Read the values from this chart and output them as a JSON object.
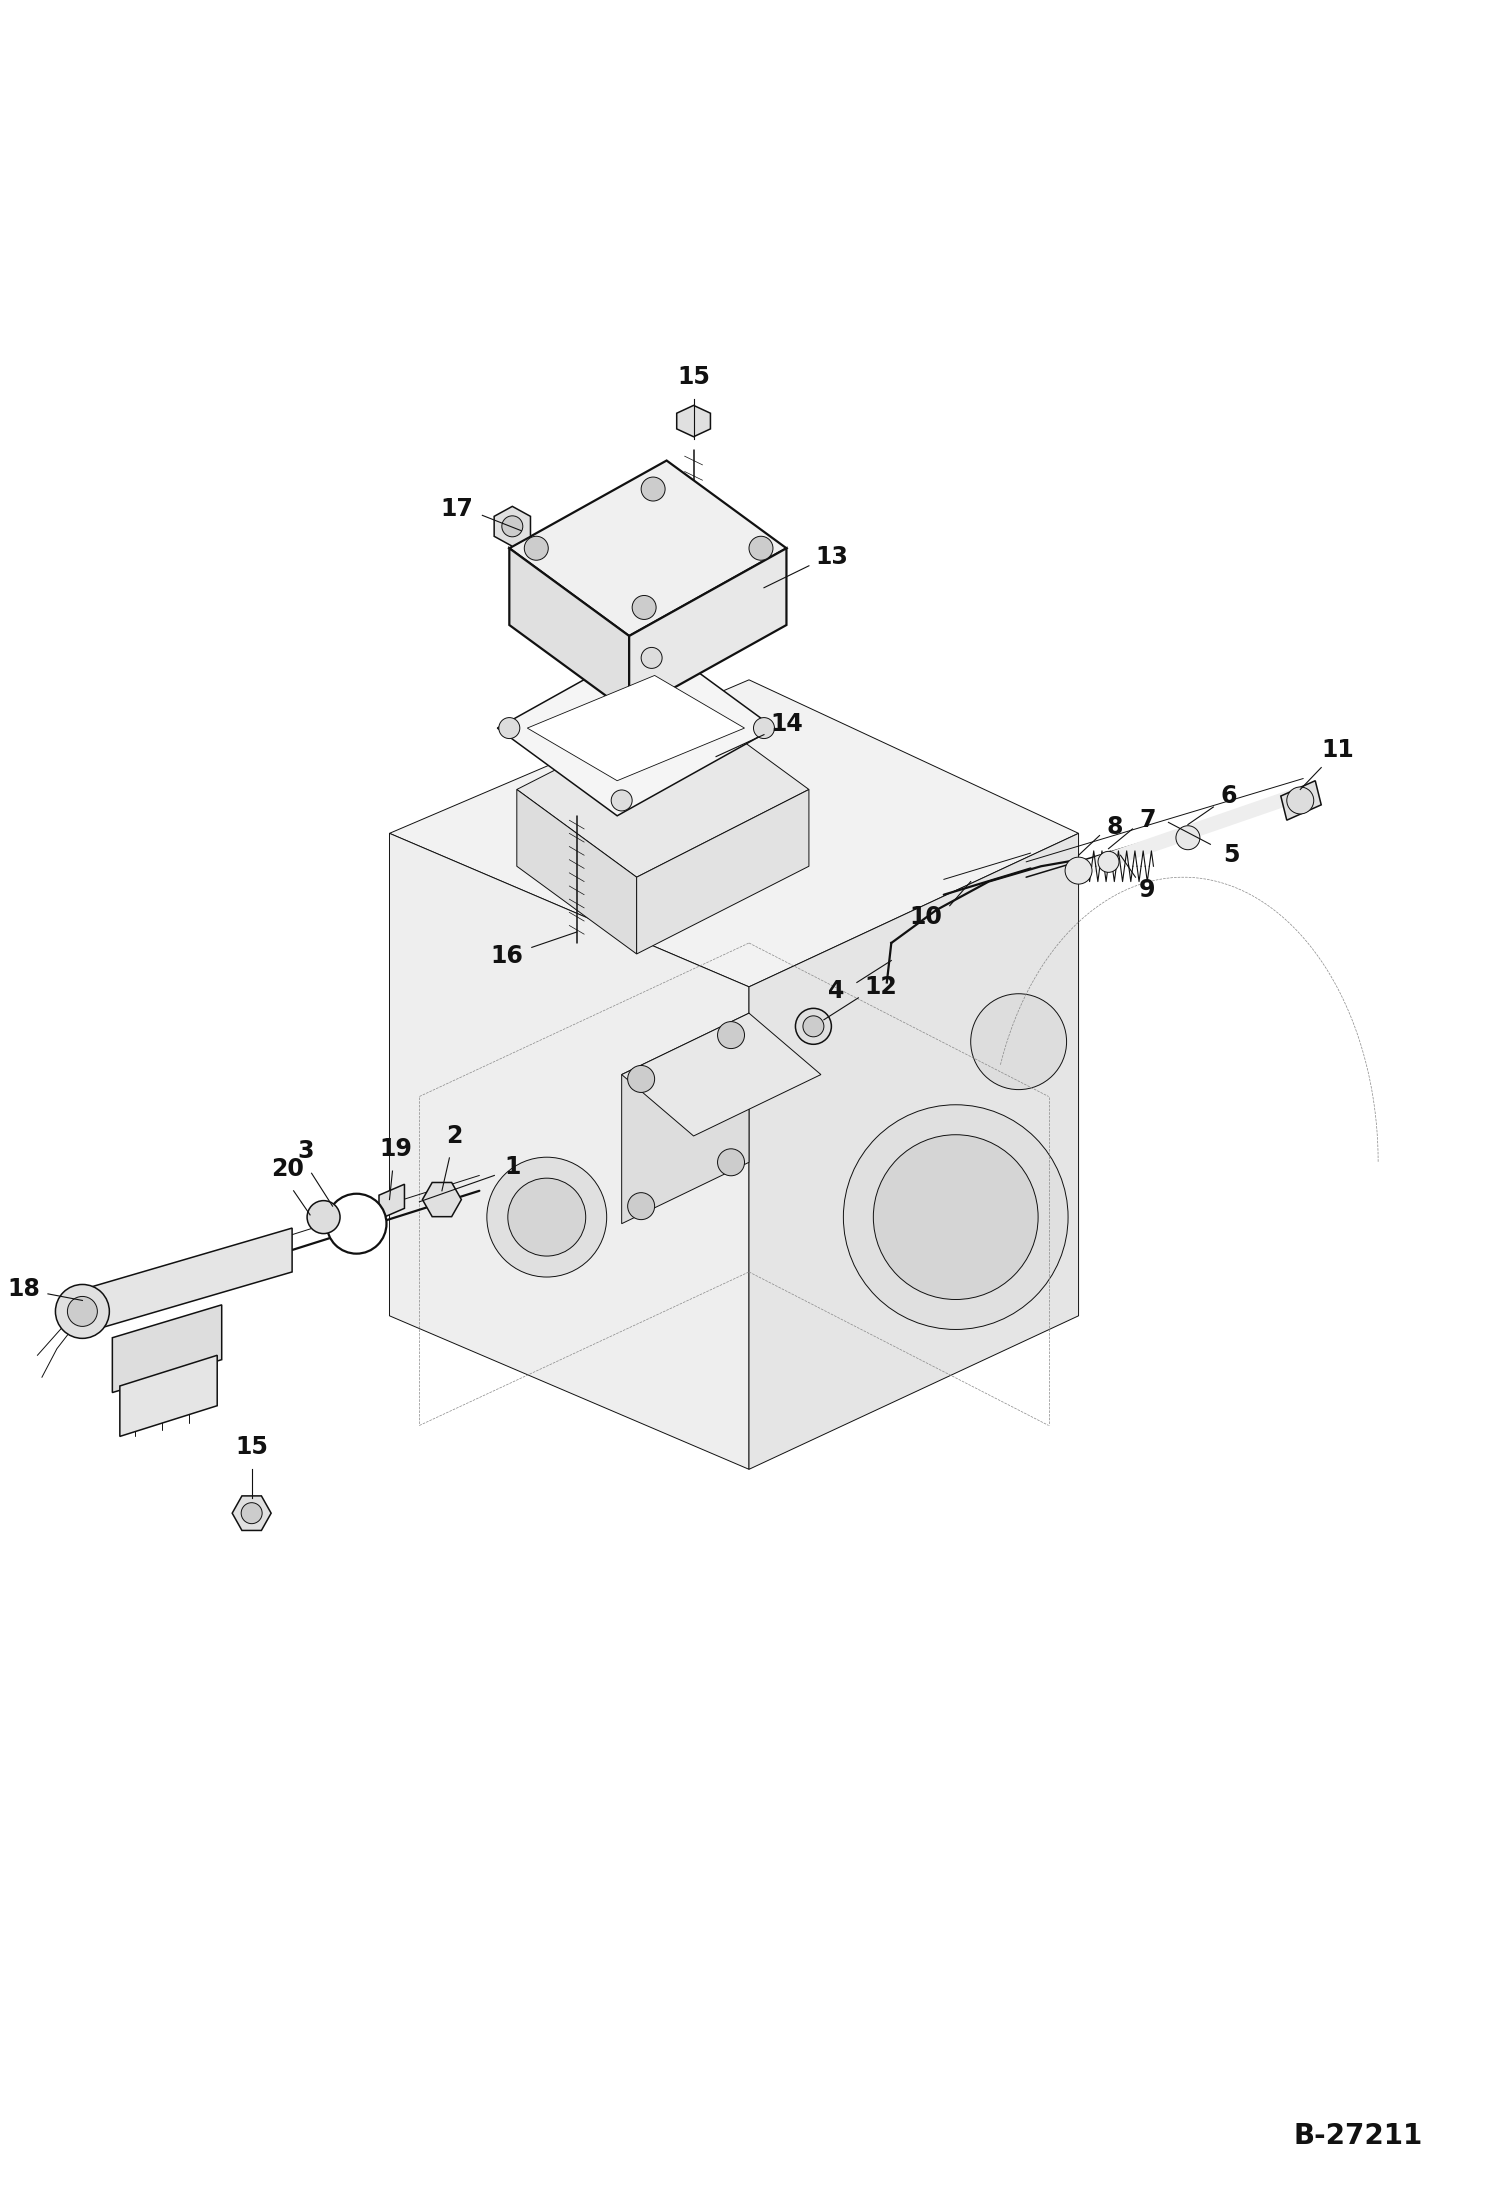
{
  "background_color": "#ffffff",
  "line_color": "#111111",
  "text_color": "#111111",
  "page_id": "B-27211",
  "fig_width": 14.98,
  "fig_height": 21.93,
  "dpi": 100
}
